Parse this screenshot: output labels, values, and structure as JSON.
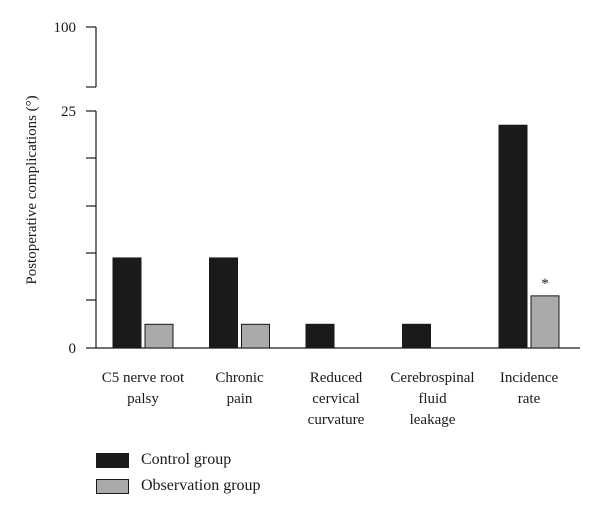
{
  "chart_data": {
    "type": "bar",
    "ylabel": "Postoperative complications (°)",
    "categories": [
      [
        "C5 nerve root",
        "palsy"
      ],
      [
        "Chronic",
        "pain"
      ],
      [
        "Reduced",
        "cervical",
        "curvature"
      ],
      [
        "Cerebrospinal",
        "fluid",
        "leakage"
      ],
      [
        "Incidence",
        "rate"
      ]
    ],
    "series": [
      {
        "name": "Control group",
        "color": "#1a1a1a",
        "values": [
          9.5,
          9.5,
          2.5,
          2.5,
          23.5
        ]
      },
      {
        "name": "Observation group",
        "color": "#aaaaaa",
        "values": [
          2.5,
          2.5,
          0,
          0,
          5.5
        ]
      }
    ],
    "yticks_labeled": [
      "100",
      "25",
      "0"
    ],
    "axis_break": {
      "lower_range": [
        0,
        25
      ],
      "upper_value": 100
    },
    "annotations": [
      {
        "category_index": 4,
        "series_index": 1,
        "text": "*"
      }
    ],
    "legend_position": "bottom-left",
    "grid": false
  }
}
